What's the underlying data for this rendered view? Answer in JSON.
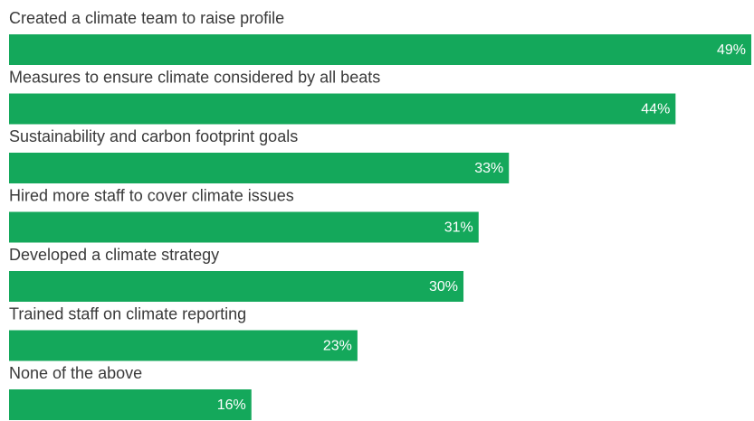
{
  "chart_data": {
    "type": "bar",
    "orientation": "horizontal",
    "categories": [
      "Created a climate team to raise profile",
      "Measures to ensure climate considered by all beats",
      "Sustainability and carbon footprint goals",
      "Hired more staff to cover climate issues",
      "Developed a climate strategy",
      "Trained staff on climate reporting",
      "None of the above"
    ],
    "values": [
      49,
      44,
      33,
      31,
      30,
      23,
      16
    ],
    "value_labels": [
      "49%",
      "44%",
      "33%",
      "31%",
      "30%",
      "23%",
      "16%"
    ],
    "color": "#14a85b"
  }
}
